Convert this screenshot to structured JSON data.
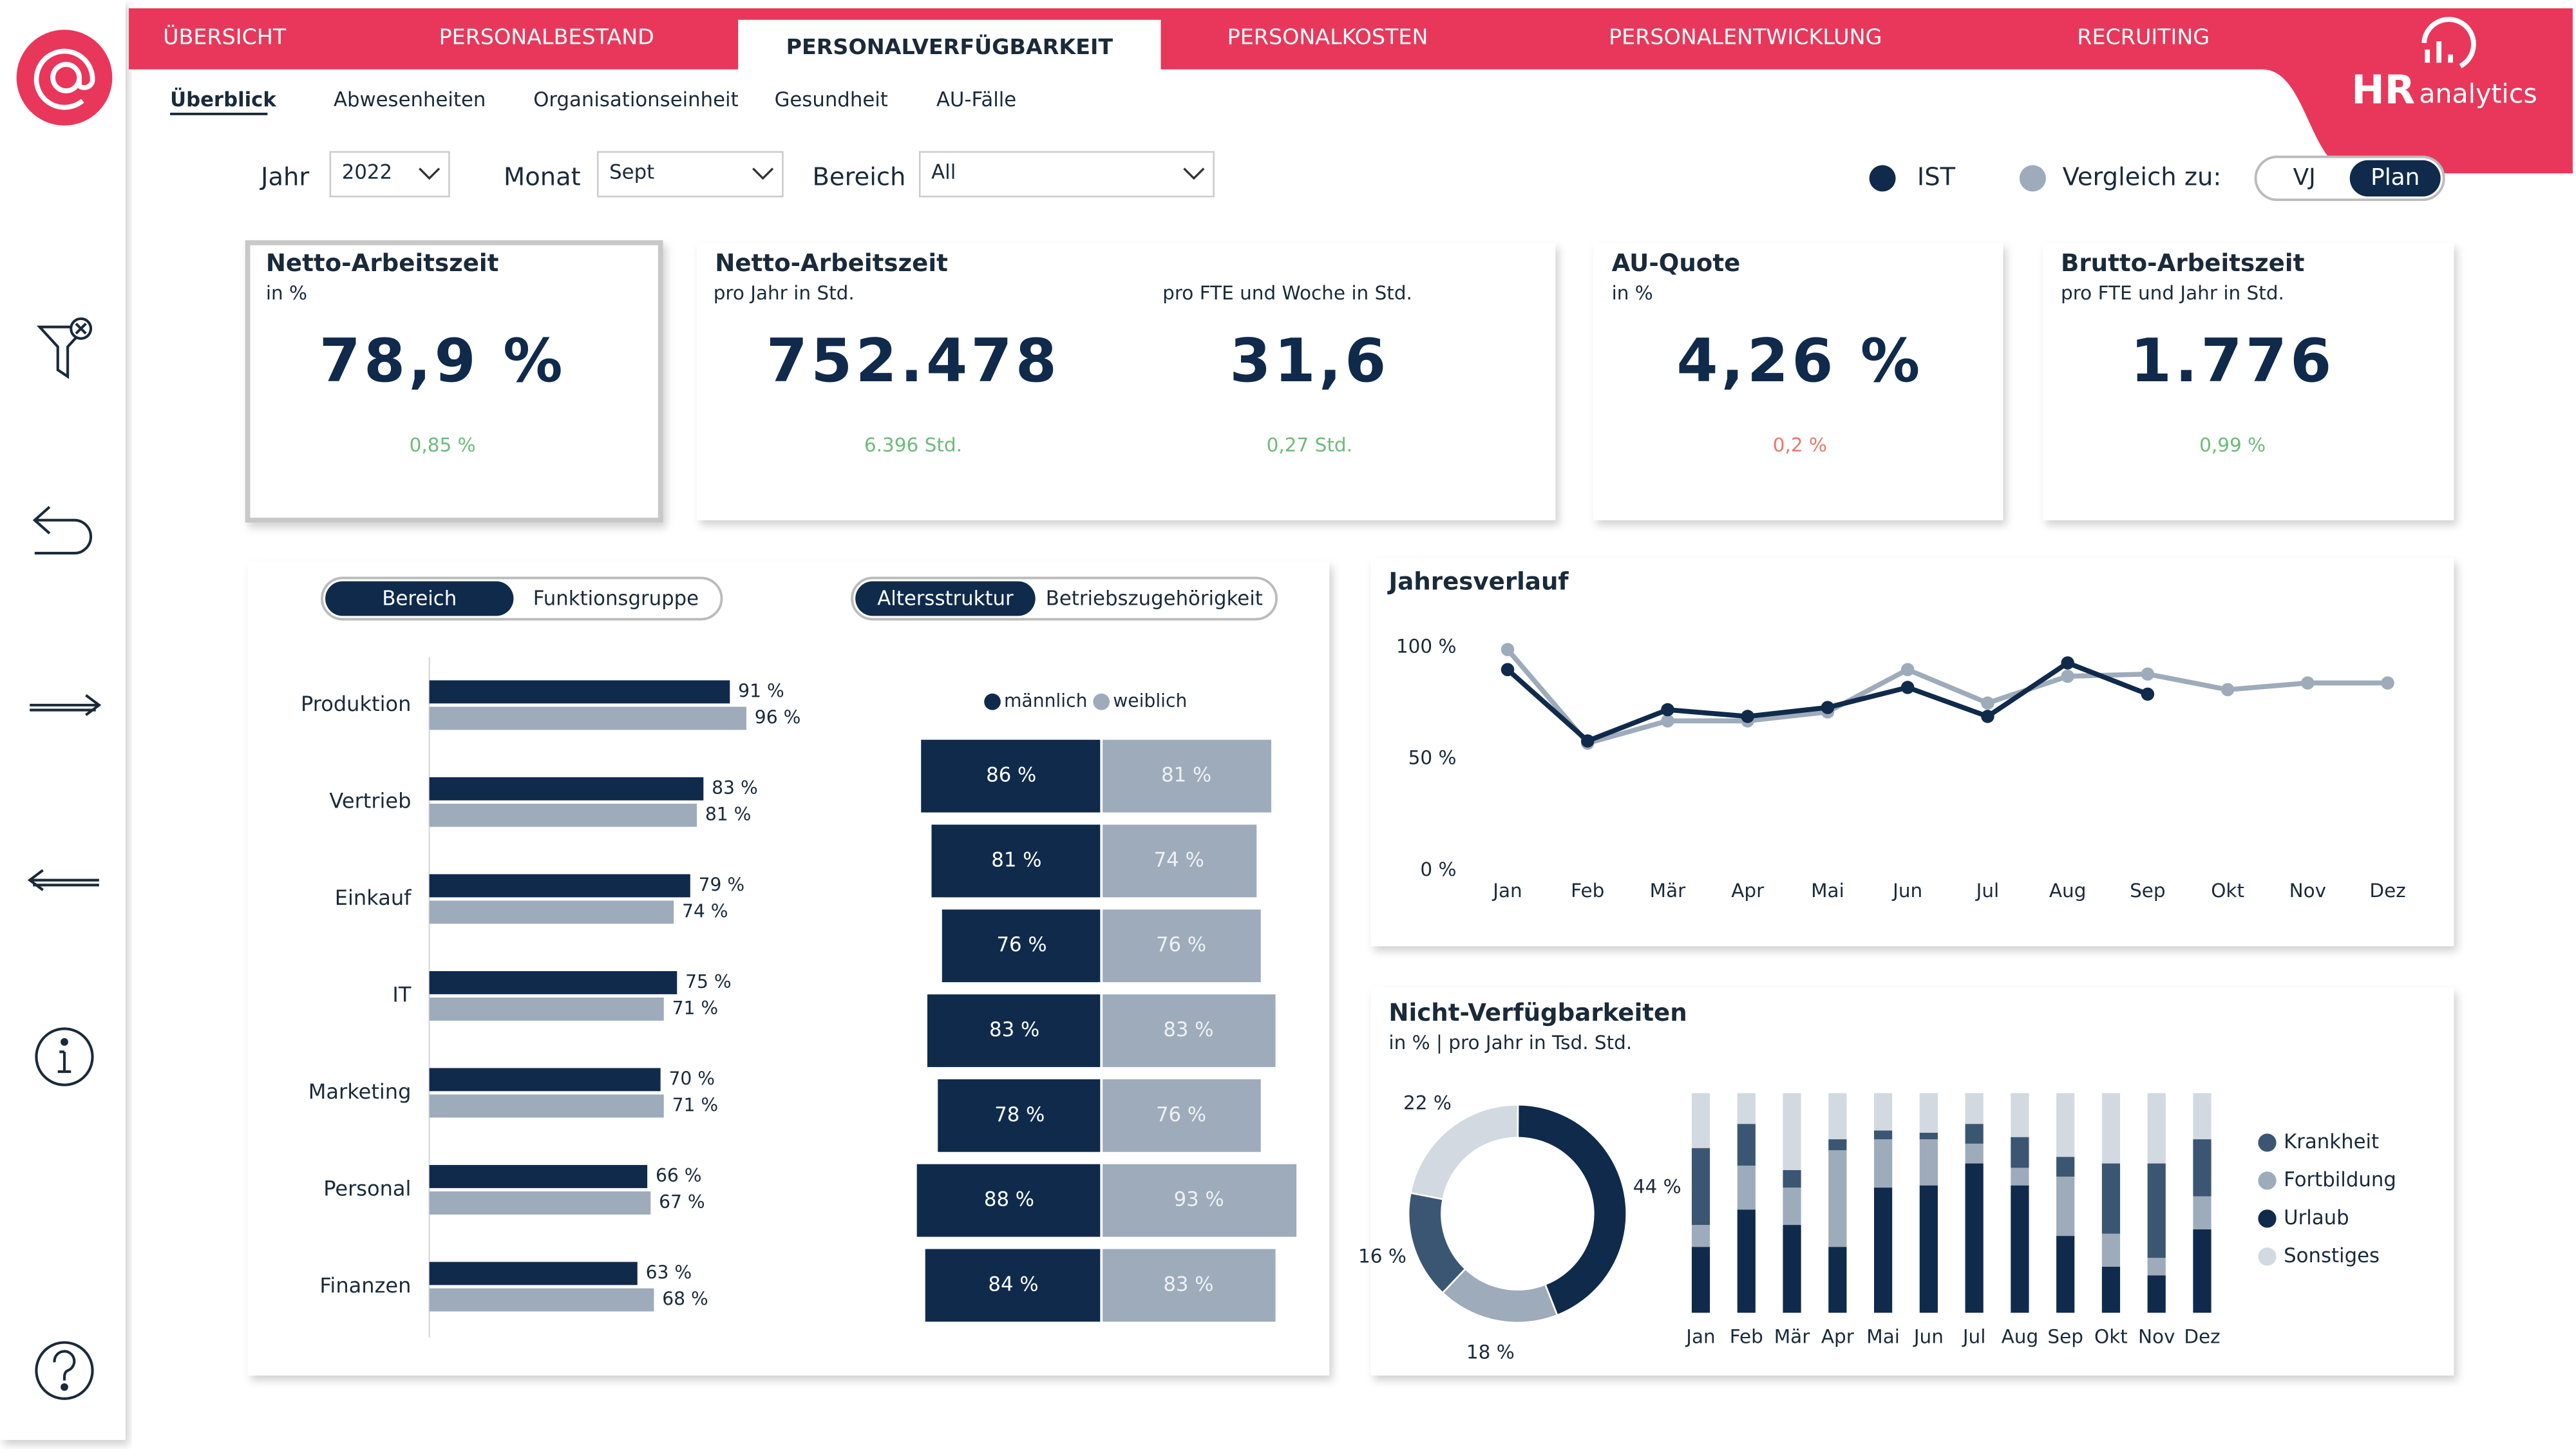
{
  "nav": {
    "tabs": [
      "ÜBERSICHT",
      "PERSONALBESTAND",
      "PERSONALVERFÜGBARKEIT",
      "PERSONALKOSTEN",
      "PERSONALENTWICKLUNG",
      "RECRUITING"
    ],
    "active": 2,
    "subtabs": [
      "Überblick",
      "Abwesenheiten",
      "Organisationseinheit",
      "Gesundheit",
      "AU-Fälle"
    ],
    "active_subtab": 0
  },
  "logo": {
    "brand": "HR",
    "suffix": "analytics"
  },
  "filters": [
    {
      "label": "Jahr",
      "value": "2022"
    },
    {
      "label": "Monat",
      "value": "Sept"
    },
    {
      "label": "Bereich",
      "value": "All"
    }
  ],
  "comparison": {
    "actual": "IST",
    "actual_color": "#102a4c",
    "label": "Vergleich zu:",
    "label_color": "#9eabba",
    "options": [
      "VJ",
      "Plan"
    ],
    "active": 1
  },
  "kpis": [
    {
      "title": "Netto-Arbeitszeit",
      "metrics": [
        {
          "subtitle": "in %",
          "value": "78,9 %",
          "delta": "0,85 %",
          "delta_color": "#6dbb7a"
        }
      ]
    },
    {
      "title": "Netto-Arbeitszeit",
      "metrics": [
        {
          "subtitle": "pro Jahr in Std.",
          "value": "752.478",
          "delta": "6.396 Std.",
          "delta_color": "#6dbb7a"
        },
        {
          "subtitle": "pro FTE und Woche in Std.",
          "value": "31,6",
          "delta": "0,27 Std.",
          "delta_color": "#6dbb7a"
        }
      ]
    },
    {
      "title": "AU-Quote",
      "metrics": [
        {
          "subtitle": "in %",
          "value": "4,26 %",
          "delta": "0,2 %",
          "delta_color": "#e57a6a"
        }
      ]
    },
    {
      "title": "Brutto-Arbeitszeit",
      "metrics": [
        {
          "subtitle": "pro FTE und Jahr in Std.",
          "value": "1.776",
          "delta": "0,99 %",
          "delta_color": "#6dbb7a"
        }
      ]
    }
  ],
  "bereich_chart": {
    "type": "bar",
    "orientation": "horizontal",
    "toggle": [
      "Bereich",
      "Funktionsgruppe"
    ],
    "toggle_active": 0,
    "categories": [
      "Produktion",
      "Vertrieb",
      "Einkauf",
      "IT",
      "Marketing",
      "Personal",
      "Finanzen"
    ],
    "series": [
      {
        "color": "#102a4c",
        "values": [
          91,
          83,
          79,
          75,
          70,
          66,
          63
        ],
        "value_labels": [
          "91 %",
          "83 %",
          "79 %",
          "75 %",
          "70 %",
          "66 %",
          "63 %"
        ]
      },
      {
        "color": "#9eabba",
        "values": [
          96,
          81,
          74,
          71,
          71,
          67,
          68
        ],
        "value_labels": [
          "96 %",
          "81 %",
          "74 %",
          "71 %",
          "71 %",
          "67 %",
          "68 %"
        ]
      }
    ],
    "xlim": [
      0,
      100
    ]
  },
  "alter_chart": {
    "type": "butterfly",
    "toggle": [
      "Altersstruktur",
      "Betriebszugehörigkeit"
    ],
    "toggle_active": 0,
    "series": [
      {
        "name": "männlich",
        "color": "#102a4c",
        "values": [
          86,
          81,
          76,
          83,
          78,
          88,
          84
        ],
        "value_labels": [
          "86 %",
          "81 %",
          "76 %",
          "83 %",
          "78 %",
          "88  %",
          "84 %"
        ]
      },
      {
        "name": "weiblich",
        "color": "#9eabba",
        "values": [
          81,
          74,
          76,
          83,
          76,
          93,
          83
        ],
        "value_labels": [
          "81 %",
          "74 %",
          "76 %",
          "83 %",
          "76 %",
          "93  %",
          "83 %"
        ]
      }
    ],
    "xlim": [
      0,
      100
    ]
  },
  "jahresverlauf": {
    "type": "line",
    "title": "Jahresverlauf",
    "categories": [
      "Jan",
      "Feb",
      "Mär",
      "Apr",
      "Mai",
      "Jun",
      "Jul",
      "Aug",
      "Sep",
      "Okt",
      "Nov",
      "Dez"
    ],
    "series": [
      {
        "color": "#102a4c",
        "values": [
          90,
          58,
          72,
          69,
          73,
          82,
          69,
          93,
          79,
          null,
          null,
          null
        ]
      },
      {
        "color": "#9eabba",
        "values": [
          99,
          57,
          67,
          67,
          71,
          90,
          75,
          87,
          88,
          81,
          84,
          84
        ]
      }
    ],
    "ylim": [
      0,
      100
    ],
    "yticks": [
      {
        "value": 0,
        "label": "0 %"
      },
      {
        "value": 50,
        "label": "50 %"
      },
      {
        "value": 100,
        "label": "100 %"
      }
    ]
  },
  "nicht_verfuegbarkeiten": {
    "title": "Nicht-Verfügbarkeiten",
    "subtitle": "in % | pro Jahr in Tsd. Std.",
    "donut": {
      "type": "pie",
      "values": [
        16,
        18,
        44,
        22
      ],
      "value_labels": [
        "16 %",
        "18 %",
        "44 %",
        "22 %"
      ],
      "colors": [
        "#3b5672",
        "#9eabba",
        "#102a4c",
        "#d3d9e0"
      ]
    },
    "stacked": {
      "type": "stacked_bar",
      "categories": [
        "Jan",
        "Feb",
        "Mär",
        "Apr",
        "Mai",
        "Jun",
        "Jul",
        "Aug",
        "Sep",
        "Okt",
        "Nov",
        "Dez"
      ],
      "series": [
        {
          "name": "Krankheit",
          "color": "#3b5672",
          "values": [
            35,
            19,
            8,
            5,
            4,
            3,
            9,
            14,
            9,
            32,
            43,
            26
          ]
        },
        {
          "name": "Fortbildung",
          "color": "#9eabba",
          "values": [
            10,
            20,
            17,
            44,
            22,
            21,
            9,
            8,
            27,
            15,
            8,
            15
          ]
        },
        {
          "name": "Urlaub",
          "color": "#102a4c",
          "values": [
            30,
            47,
            40,
            30,
            57,
            58,
            68,
            58,
            35,
            21,
            17,
            38
          ]
        },
        {
          "name": "Sonstiges",
          "color": "#d3d9e0",
          "values": [
            25,
            14,
            35,
            21,
            17,
            18,
            14,
            20,
            29,
            32,
            32,
            21
          ]
        }
      ],
      "ylim": [
        0,
        100
      ]
    }
  }
}
